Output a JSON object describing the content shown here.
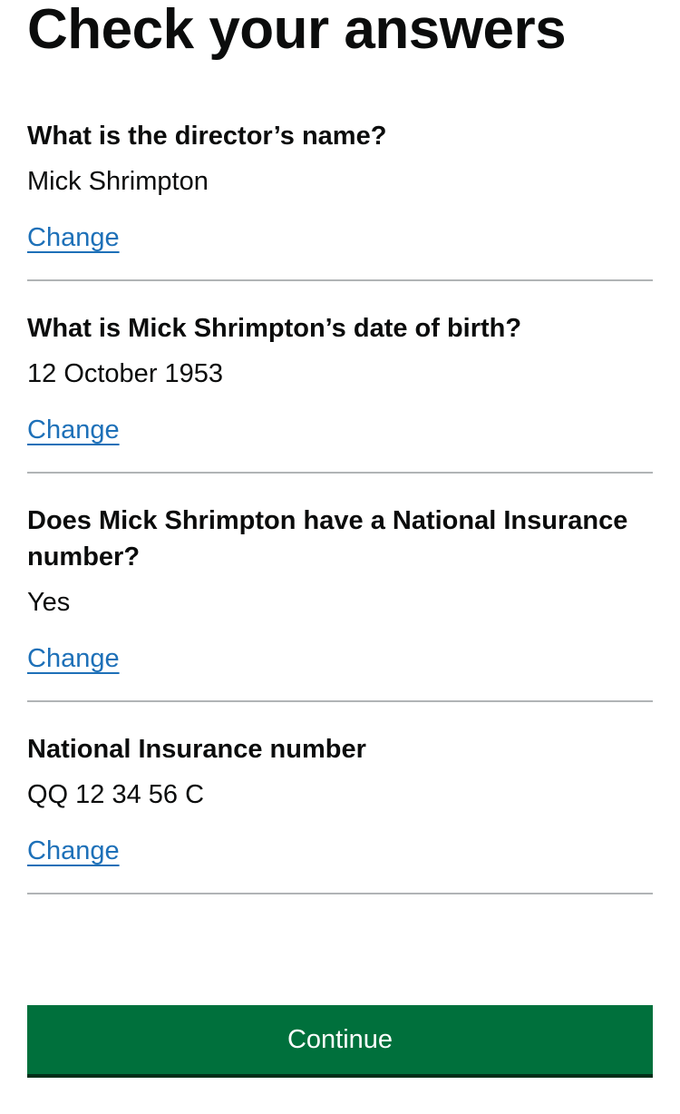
{
  "page": {
    "title": "Check your answers"
  },
  "summary": {
    "rows": [
      {
        "key": "What is the director’s name?",
        "value": "Mick Shrimpton",
        "action": "Change"
      },
      {
        "key": "What is Mick Shrimpton’s date of birth?",
        "value": "12 October 1953",
        "action": "Change"
      },
      {
        "key": "Does Mick Shrimpton have a National Insurance number?",
        "value": "Yes",
        "action": "Change"
      },
      {
        "key": "National Insurance number",
        "value": "QQ 12 34 56 C",
        "action": "Change"
      }
    ]
  },
  "actions": {
    "continue_label": "Continue"
  },
  "colors": {
    "link": "#1d70b8",
    "button": "#00703c",
    "border": "#b1b4b6",
    "text": "#0b0c0c"
  }
}
